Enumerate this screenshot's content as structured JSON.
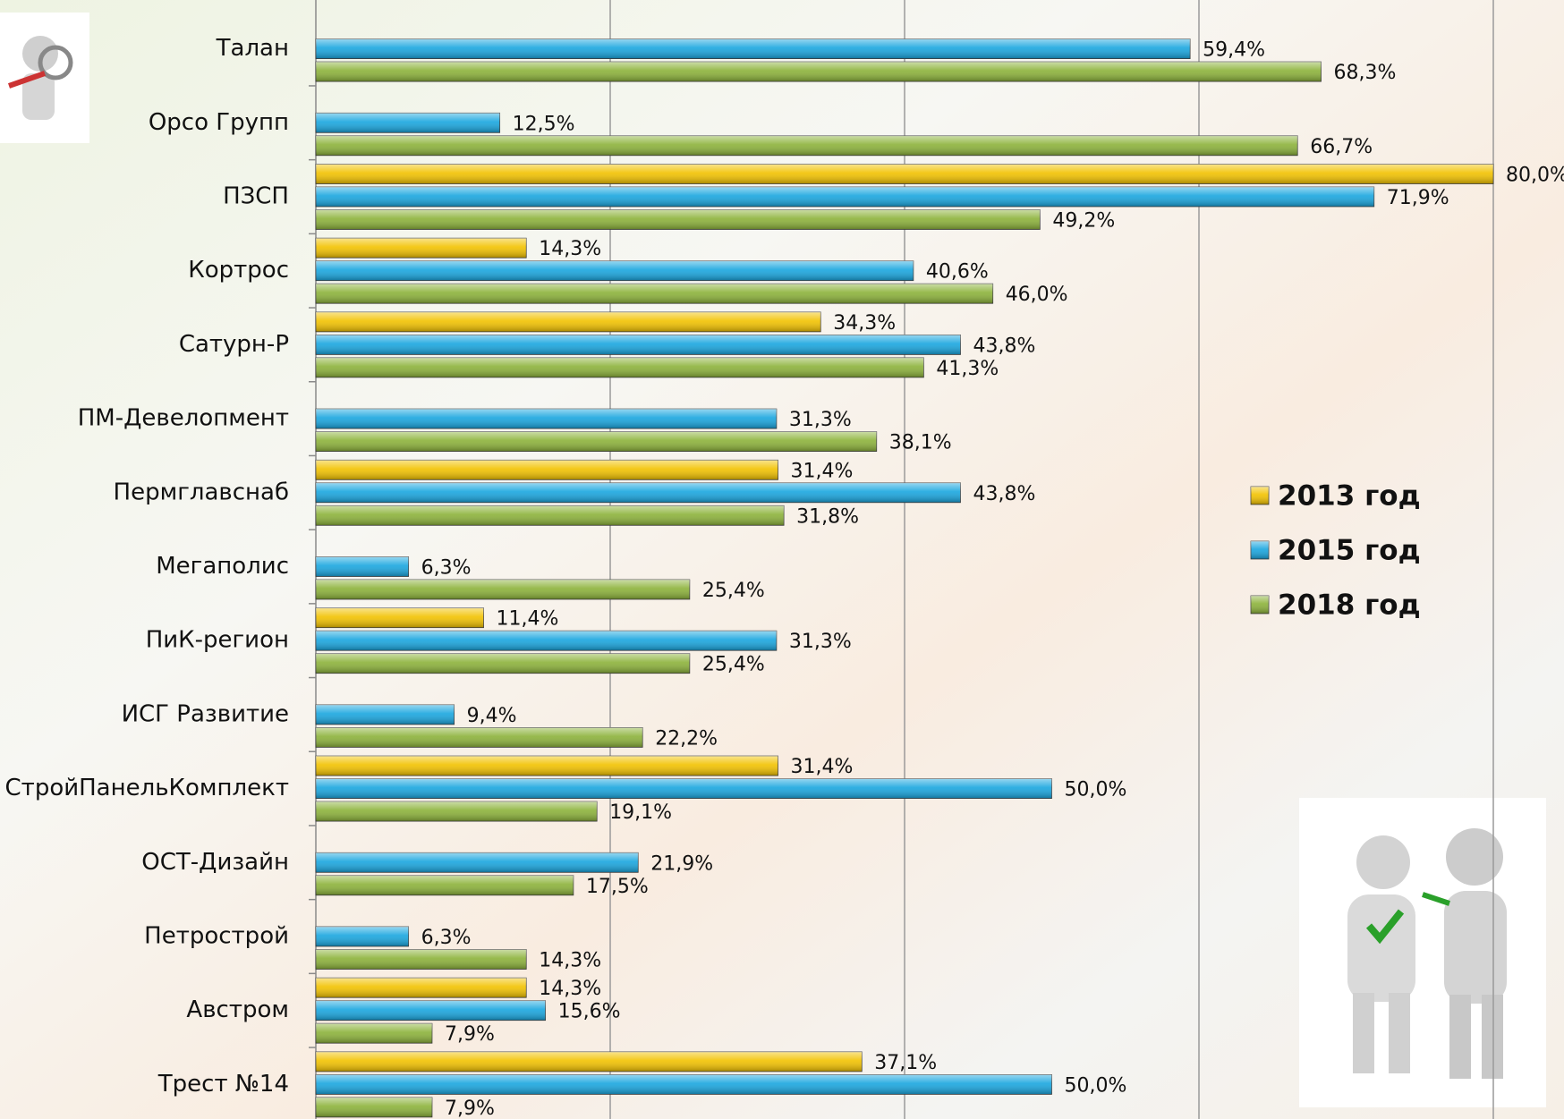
{
  "chart_data": {
    "type": "bar",
    "orientation": "horizontal",
    "categories": [
      "Талан",
      "Орсо Групп",
      "ПЗСП",
      "Кортрос",
      "Сатурн-Р",
      "ПМ-Девелопмент",
      "Пермглавснаб",
      "Мегаполис",
      "ПиК-регион",
      "ИСГ Развитие",
      "СтройПанельКомплект",
      "ОСТ-Дизайн",
      "Петрострой",
      "Австром",
      "Трест №14"
    ],
    "series": [
      {
        "name": "2013 год",
        "color": "#f2c200",
        "values": [
          null,
          null,
          80.0,
          14.3,
          34.3,
          null,
          31.4,
          null,
          11.4,
          null,
          31.4,
          null,
          null,
          14.3,
          37.1
        ],
        "value_labels": [
          null,
          null,
          "80,0%",
          "14,3%",
          "34,3%",
          null,
          "31,4%",
          null,
          "11,4%",
          null,
          "31,4%",
          null,
          null,
          "14,3%",
          "37,1%"
        ]
      },
      {
        "name": "2015 год",
        "color": "#19a6df",
        "values": [
          59.4,
          12.5,
          71.9,
          40.6,
          43.8,
          31.3,
          43.8,
          6.3,
          31.3,
          9.4,
          50.0,
          21.9,
          6.3,
          15.6,
          50.0
        ],
        "value_labels": [
          "59,4%",
          "12,5%",
          "71,9%",
          "40,6%",
          "43,8%",
          "31,3%",
          "43,8%",
          "6,3%",
          "31,3%",
          "9,4%",
          "50,0%",
          "21,9%",
          "6,3%",
          "15,6%",
          "50,0%"
        ]
      },
      {
        "name": "2018 год",
        "color": "#8cb23a",
        "values": [
          68.3,
          66.7,
          49.2,
          46.0,
          41.3,
          38.1,
          31.8,
          25.4,
          25.4,
          22.2,
          19.1,
          17.5,
          14.3,
          7.9,
          7.9
        ],
        "value_labels": [
          "68,3%",
          "66,7%",
          "49,2%",
          "46,0%",
          "41,3%",
          "38,1%",
          "31,8%",
          "25,4%",
          "25,4%",
          "22,2%",
          "19,1%",
          "17,5%",
          "14,3%",
          "7,9%",
          "7,9%"
        ]
      }
    ],
    "xlim": [
      0,
      80
    ],
    "xticks": [
      0,
      20,
      40,
      60,
      80
    ],
    "grid": true,
    "legend": "right"
  }
}
